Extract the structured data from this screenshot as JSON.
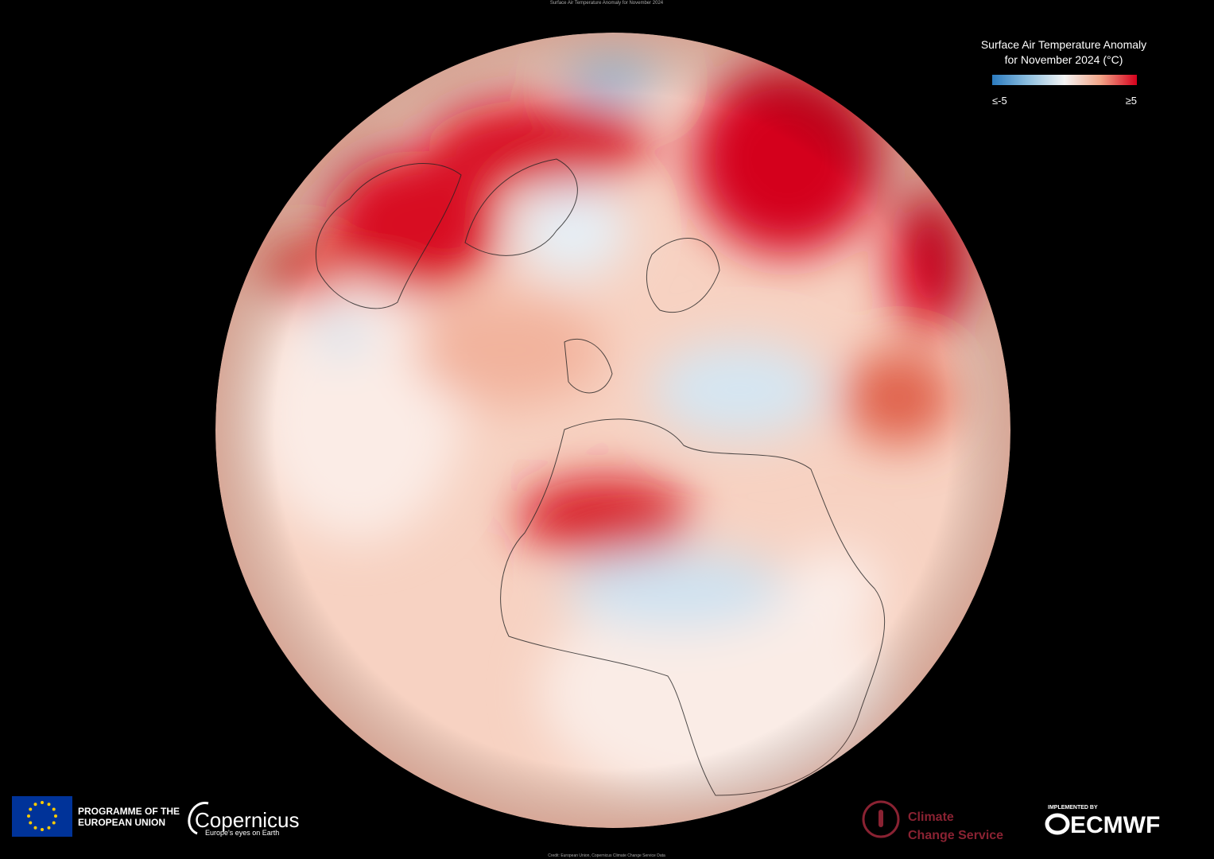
{
  "header": {
    "title": "Surface Air Temperature Anomaly for November 2024"
  },
  "legend": {
    "title_lines": [
      "Surface Air Temperature Anomaly",
      "for November 2024 (°C)"
    ],
    "colors": [
      "#2b7bbf",
      "#8fc0e0",
      "#f4f4f4",
      "#f2a487",
      "#d6001c"
    ],
    "ticks": [
      {
        "value": -5,
        "label": "≤-5"
      },
      {
        "value": 5,
        "label": "≥5"
      }
    ]
  },
  "logos": {
    "eu": "PROGRAMME OF THE EUROPEAN UNION",
    "copernicus": "Copernicus",
    "copernicus_tagline": "Europe's eyes on Earth",
    "c3s": [
      "Climate",
      "Change Service"
    ],
    "implemented_by": "IMPLEMENTED BY",
    "ecmwf": "ECMWF"
  },
  "credit": "Credit: European Union, Copernicus Climate Change Service Data"
}
